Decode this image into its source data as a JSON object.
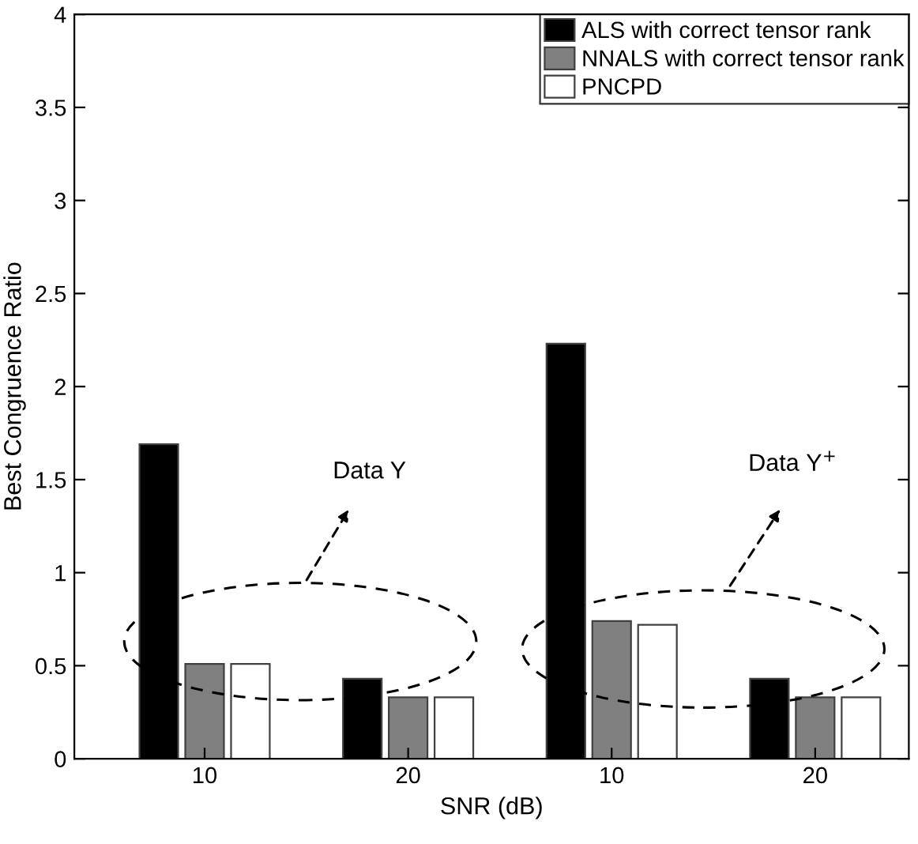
{
  "chart_data": {
    "type": "bar",
    "xlabel": "SNR (dB)",
    "ylabel": "Best Congruence Ratio",
    "categories": [
      "10",
      "20",
      "10",
      "20"
    ],
    "series": [
      {
        "name": "ALS with correct tensor rank",
        "color": "#000000",
        "values": [
          1.69,
          0.43,
          2.23,
          0.43
        ]
      },
      {
        "name": "NNALS with correct tensor rank",
        "color": "#808080",
        "values": [
          0.51,
          0.33,
          0.74,
          0.33
        ]
      },
      {
        "name": "PNCPD",
        "color": "#ffffff",
        "values": [
          0.51,
          0.33,
          0.72,
          0.33
        ]
      }
    ],
    "ylim": [
      0,
      4
    ],
    "yticks": [
      0,
      0.5,
      1,
      1.5,
      2,
      2.5,
      3,
      3.5,
      4
    ],
    "annotations": [
      "Data Y",
      "Data Y$^{+}$"
    ],
    "legend": "top right",
    "grid": false
  }
}
